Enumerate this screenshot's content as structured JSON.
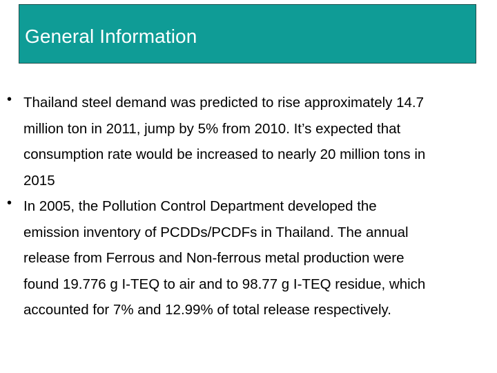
{
  "slide": {
    "title": "General Information",
    "bullet_glyph": "•",
    "bullets": [
      {
        "text": "Thailand steel demand was predicted to rise approximately 14.7\nmillion ton in 2011, jump by 5% from 2010. It’s expected that\nconsumption rate would be increased to nearly 20 million tons in\n2015"
      },
      {
        "text": "In 2005, the Pollution Control Department developed the\nemission inventory of PCDDs/PCDFs in Thailand. The annual\nrelease from Ferrous and Non-ferrous metal production were\nfound 19.776 g I-TEQ to air and to 98.77 g I-TEQ residue, which\naccounted for 7% and 12.99% of total release respectively."
      }
    ]
  },
  "colors": {
    "title_background": "#0f9c96",
    "title_border": "#1f4f4c",
    "title_text": "#ffffff",
    "body_text": "#000000",
    "page_background": "#ffffff"
  }
}
